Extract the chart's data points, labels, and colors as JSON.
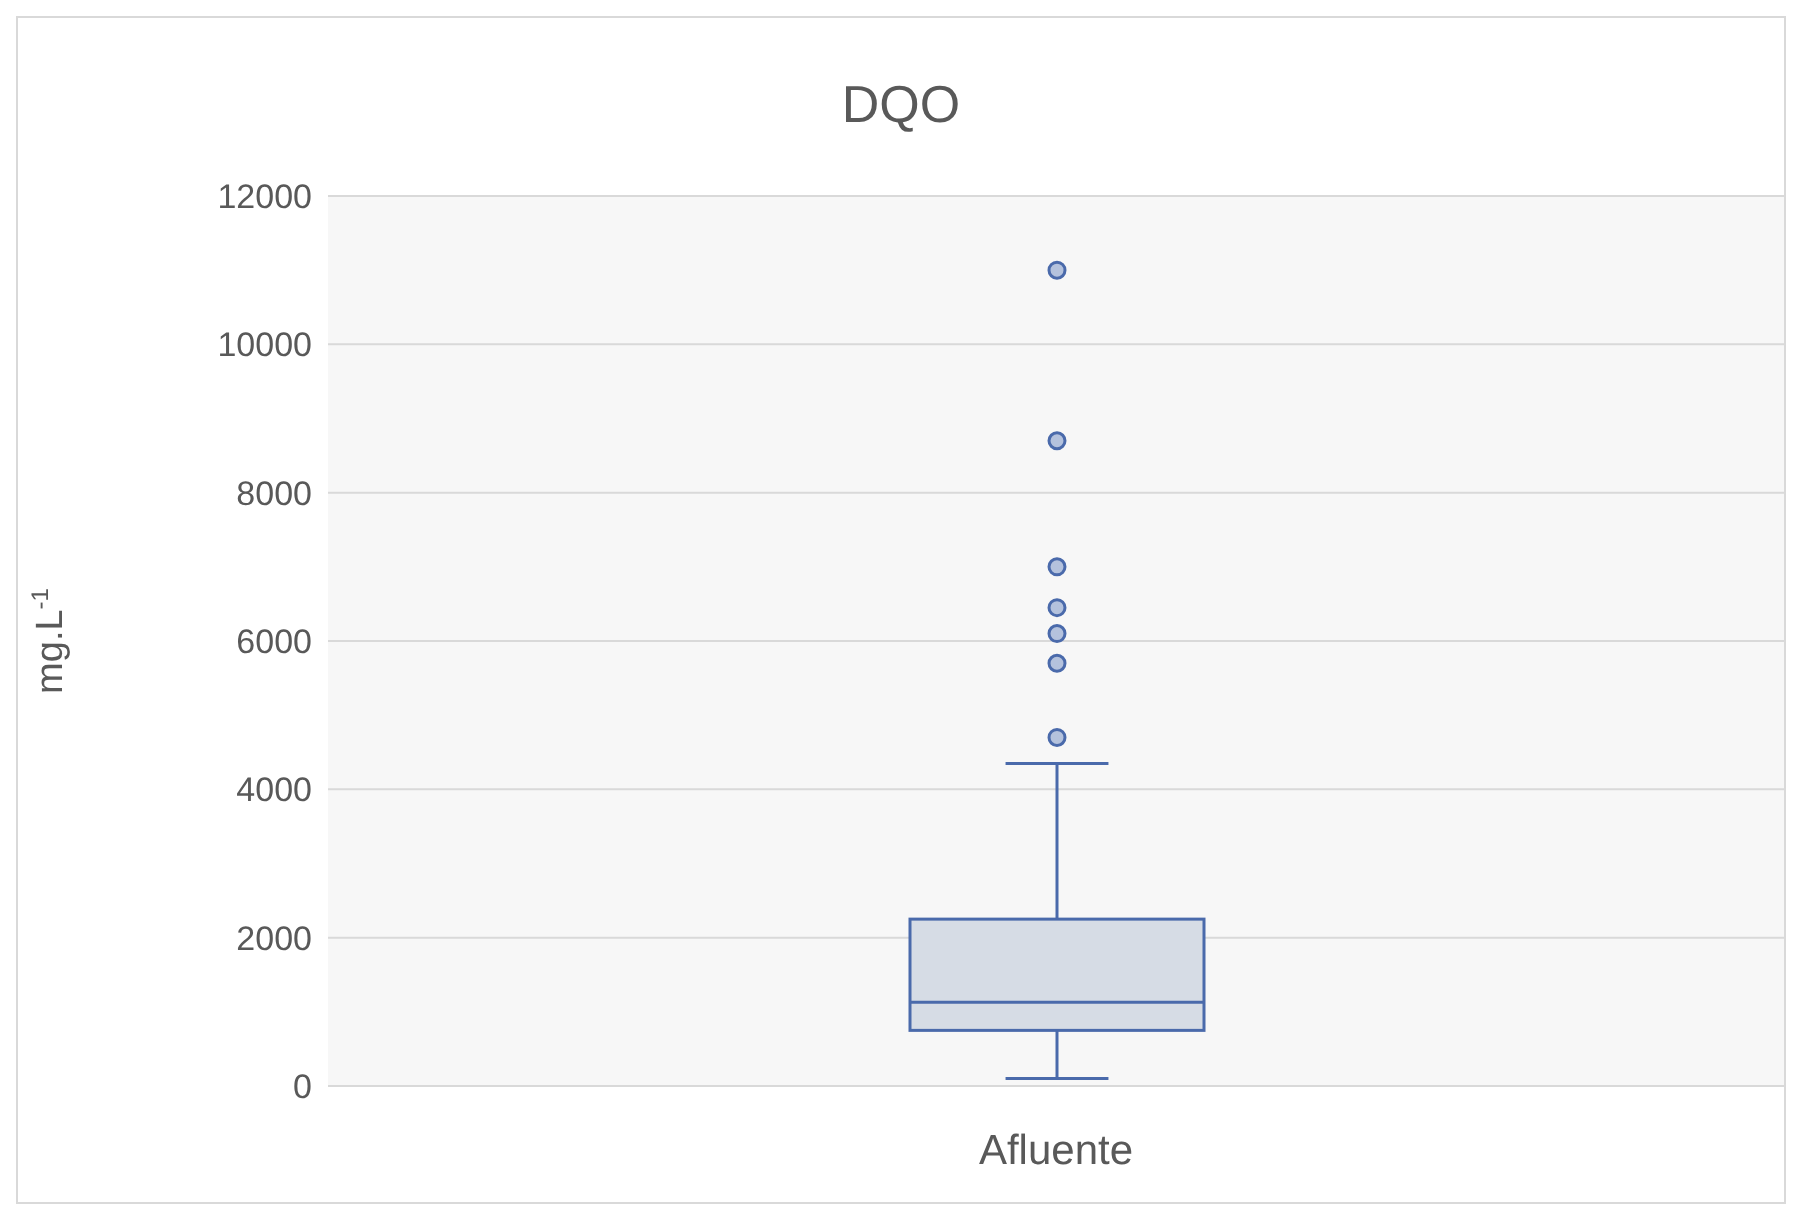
{
  "chart_data": {
    "type": "box",
    "title": "DQO",
    "ylabel": "mg.L$^{-1}$",
    "categories": [
      "Afluente"
    ],
    "boxes": [
      {
        "low": 100,
        "q1": 750,
        "median": 1130,
        "q3": 2250,
        "high": 4350,
        "outliers": [
          4700,
          5700,
          6100,
          6450,
          7000,
          8700,
          11000
        ]
      }
    ],
    "color": "#4a6aab",
    "ylim": [
      0,
      12000
    ],
    "yticks": [
      0,
      2000,
      4000,
      6000,
      8000,
      10000,
      12000
    ],
    "grid": "y",
    "legend": false
  }
}
